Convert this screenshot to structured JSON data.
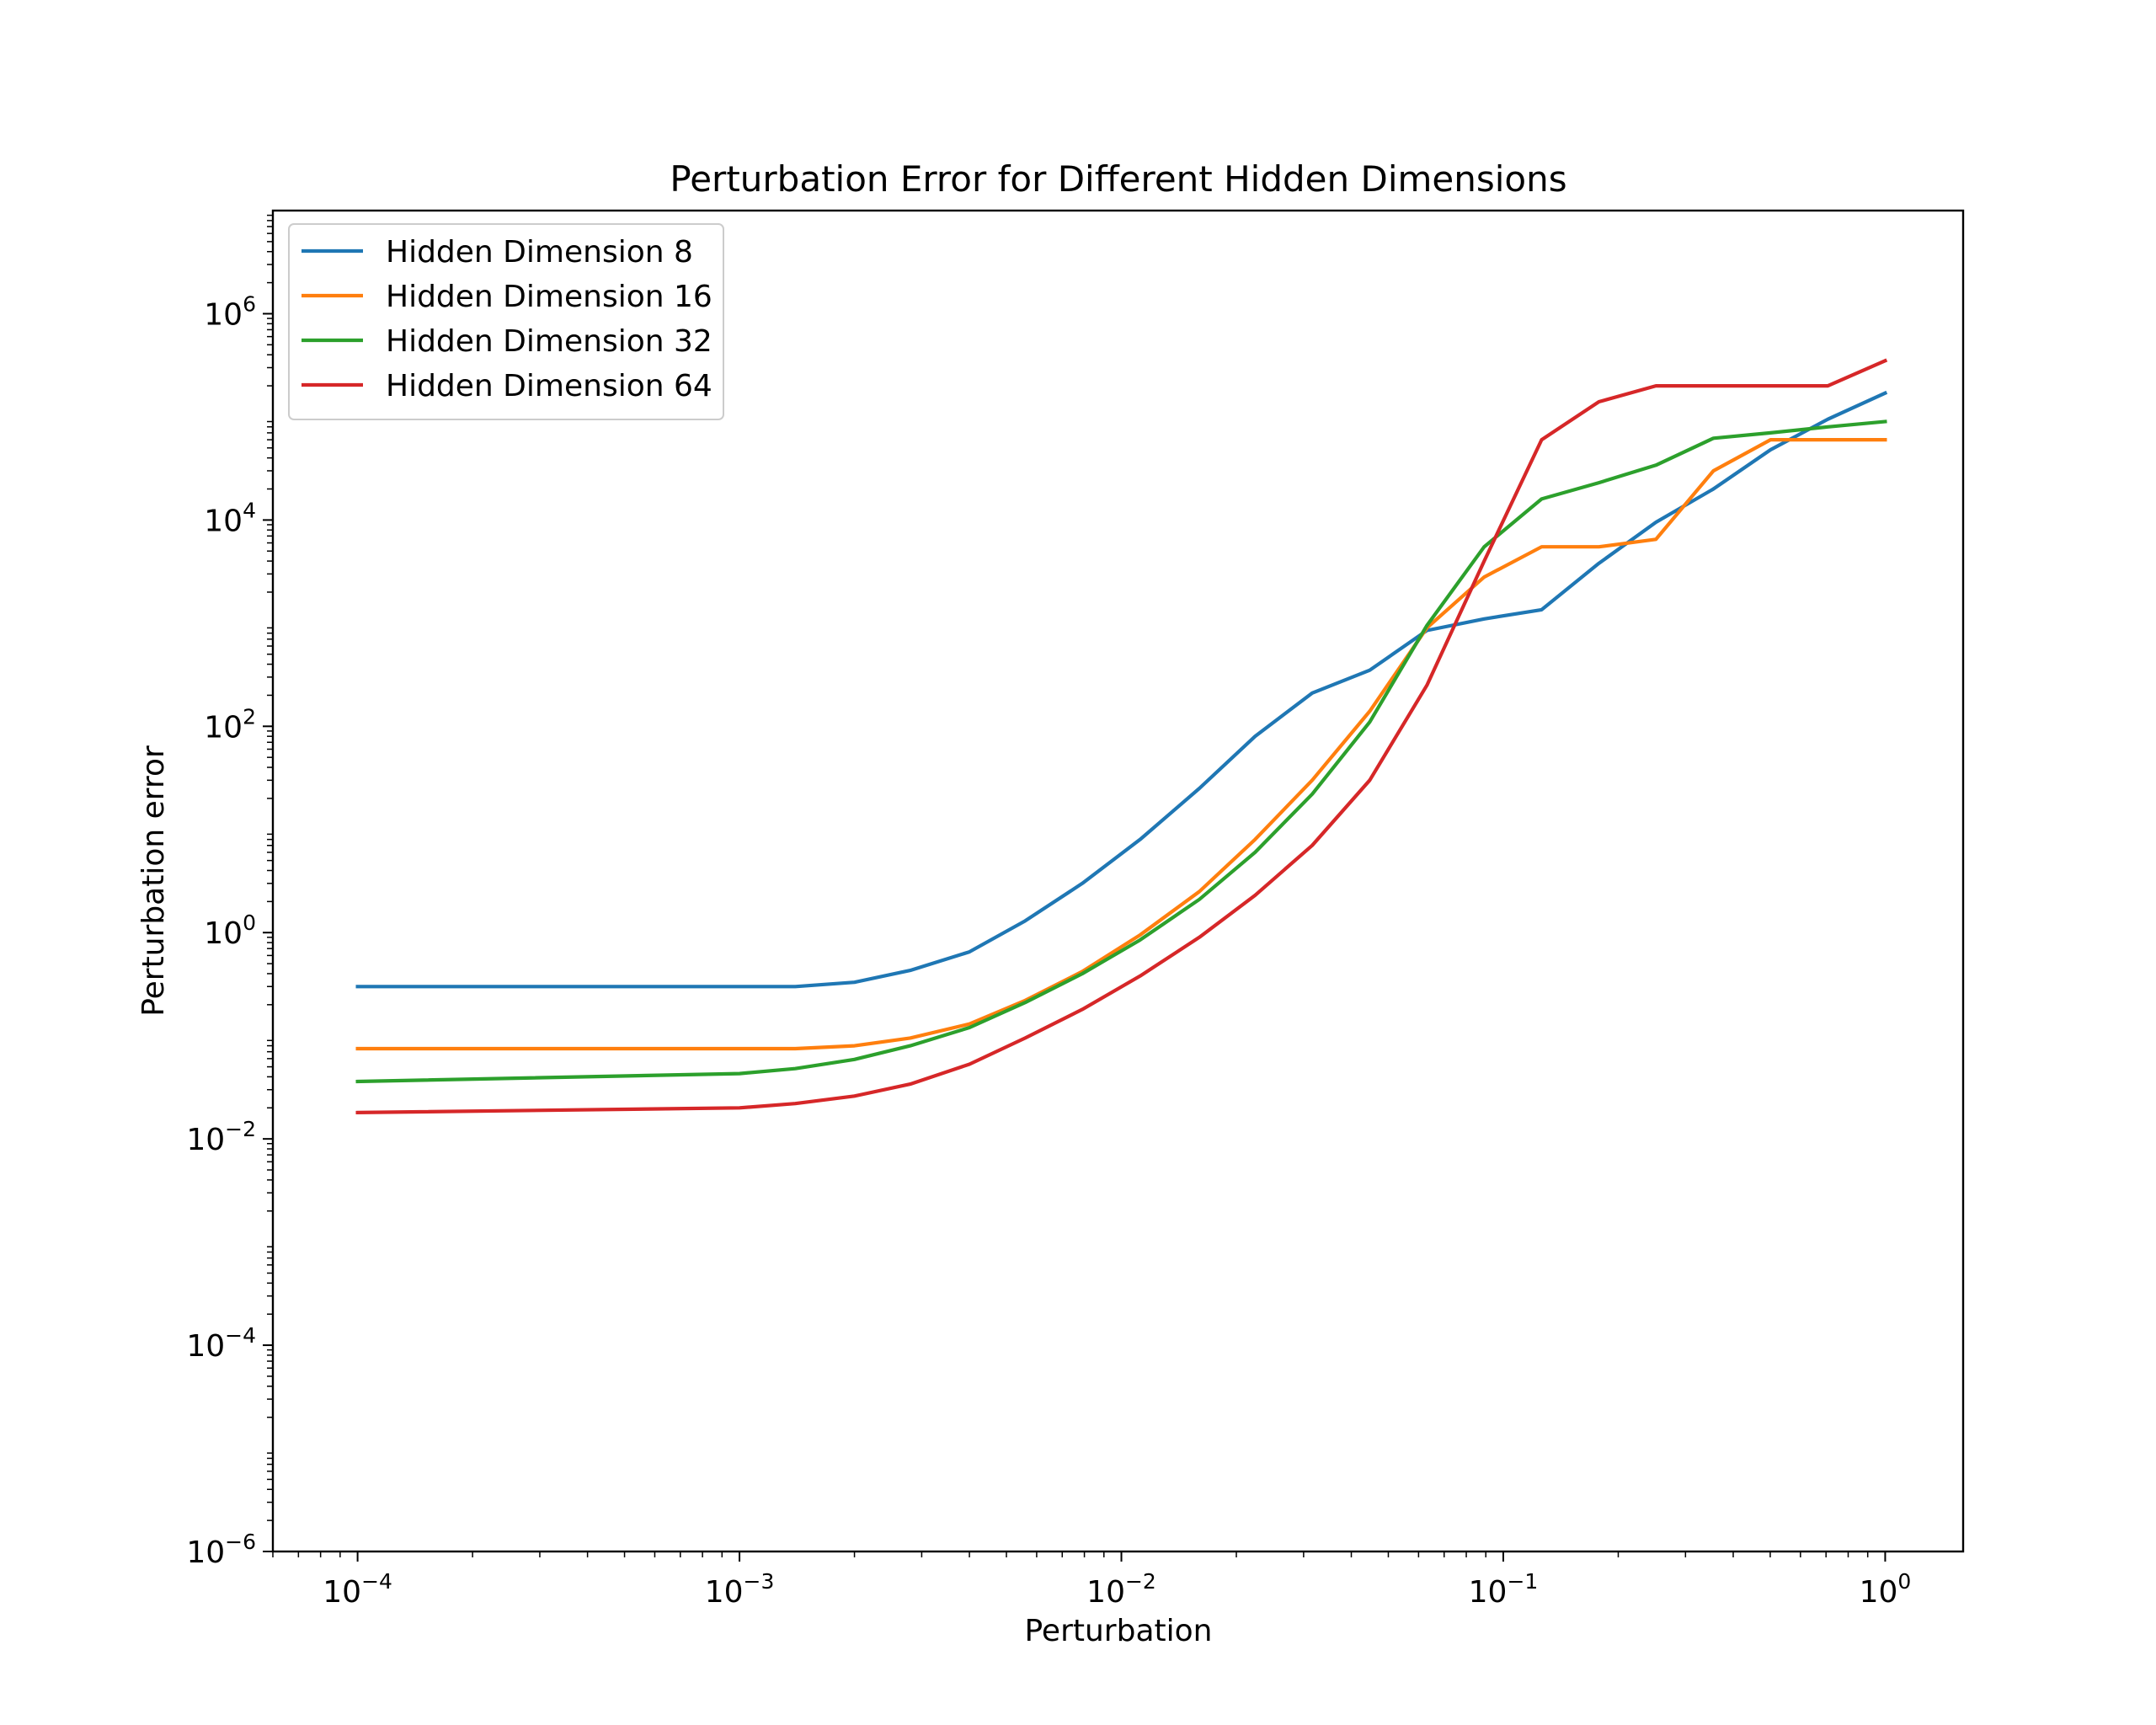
{
  "chart_data": {
    "type": "line",
    "title": "Perturbation Error for Different Hidden Dimensions",
    "xlabel": "Perturbation",
    "ylabel": "Perturbation error",
    "xscale": "log",
    "yscale": "log",
    "xlim": [
      6e-05,
      1.6
    ],
    "ylim": [
      1e-06,
      10000000
    ],
    "xticks": [
      {
        "base": "10",
        "exp": "−4",
        "value": 0.0001
      },
      {
        "base": "10",
        "exp": "−3",
        "value": 0.001
      },
      {
        "base": "10",
        "exp": "−2",
        "value": 0.01
      },
      {
        "base": "10",
        "exp": "−1",
        "value": 0.1
      },
      {
        "base": "10",
        "exp": "0",
        "value": 1
      }
    ],
    "yticks": [
      {
        "base": "10",
        "exp": "−6",
        "value": 1e-06
      },
      {
        "base": "10",
        "exp": "−4",
        "value": 0.0001
      },
      {
        "base": "10",
        "exp": "−2",
        "value": 0.01
      },
      {
        "base": "10",
        "exp": "0",
        "value": 1
      },
      {
        "base": "10",
        "exp": "2",
        "value": 100
      },
      {
        "base": "10",
        "exp": "4",
        "value": 10000
      },
      {
        "base": "10",
        "exp": "6",
        "value": 1000000
      }
    ],
    "legend_position": "upper-left",
    "series": [
      {
        "name": "Hidden Dimension 8",
        "color": "#1f77b4",
        "x": [
          0.0001,
          0.001,
          0.0014,
          0.002,
          0.0028,
          0.004,
          0.0056,
          0.0079,
          0.0112,
          0.016,
          0.0224,
          0.0316,
          0.0447,
          0.0631,
          0.0891,
          0.126,
          0.178,
          0.251,
          0.355,
          0.501,
          0.708,
          1.0
        ],
        "y": [
          0.3,
          0.3,
          0.3,
          0.33,
          0.43,
          0.65,
          1.3,
          3.0,
          8.0,
          25,
          80,
          210,
          350,
          850,
          1100,
          1350,
          3800,
          9500,
          20000,
          48000,
          95000,
          170000
        ]
      },
      {
        "name": "Hidden Dimension 16",
        "color": "#ff7f0e",
        "x": [
          0.0001,
          0.001,
          0.0014,
          0.002,
          0.0028,
          0.004,
          0.0056,
          0.0079,
          0.0112,
          0.016,
          0.0224,
          0.0316,
          0.0447,
          0.0631,
          0.0891,
          0.126,
          0.178,
          0.251,
          0.355,
          0.501,
          0.708,
          1.0
        ],
        "y": [
          0.075,
          0.075,
          0.075,
          0.08,
          0.095,
          0.13,
          0.22,
          0.42,
          0.95,
          2.5,
          8.0,
          30,
          140,
          900,
          2800,
          5500,
          5500,
          6500,
          30000,
          60000,
          60000,
          60000
        ]
      },
      {
        "name": "Hidden Dimension 32",
        "color": "#2ca02c",
        "x": [
          0.0001,
          0.001,
          0.0014,
          0.002,
          0.0028,
          0.004,
          0.0056,
          0.0079,
          0.0112,
          0.016,
          0.0224,
          0.0316,
          0.0447,
          0.0631,
          0.0891,
          0.126,
          0.178,
          0.251,
          0.355,
          0.501,
          0.708,
          1.0
        ],
        "y": [
          0.036,
          0.043,
          0.048,
          0.059,
          0.08,
          0.12,
          0.21,
          0.4,
          0.85,
          2.1,
          6.0,
          22,
          110,
          950,
          5500,
          16000,
          23000,
          34000,
          62000,
          70000,
          80000,
          90000
        ]
      },
      {
        "name": "Hidden Dimension 64",
        "color": "#d62728",
        "x": [
          0.0001,
          0.001,
          0.0014,
          0.002,
          0.0028,
          0.004,
          0.0056,
          0.0079,
          0.0112,
          0.016,
          0.0224,
          0.0316,
          0.0447,
          0.0631,
          0.0891,
          0.126,
          0.178,
          0.251,
          0.355,
          0.501,
          0.708,
          1.0
        ],
        "y": [
          0.018,
          0.02,
          0.022,
          0.026,
          0.034,
          0.053,
          0.095,
          0.18,
          0.38,
          0.9,
          2.3,
          7.0,
          30,
          250,
          4000,
          60000,
          140000,
          200000,
          200000,
          200000,
          200000,
          350000
        ]
      }
    ]
  }
}
